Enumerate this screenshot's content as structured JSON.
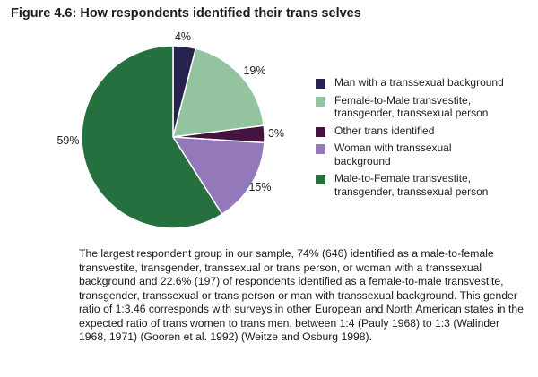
{
  "figure": {
    "title": "Figure 4.6: How respondents identified their trans selves"
  },
  "chart_data": {
    "type": "pie",
    "start_angle_deg": 0,
    "direction": "clockwise",
    "slices": [
      {
        "label": "Man with a transsexual background",
        "value": 4,
        "display": "4%",
        "color": "#27224f"
      },
      {
        "label": "Female-to-Male transvestite,\ntransgender, transsexual person",
        "value": 19,
        "display": "19%",
        "color": "#93c49f"
      },
      {
        "label": "Other trans identified",
        "value": 3,
        "display": "3%",
        "color": "#45133f"
      },
      {
        "label": "Woman with transsexual\nbackground",
        "value": 15,
        "display": "15%",
        "color": "#9479ba"
      },
      {
        "label": "Male-to-Female transvestite,\ntransgender, transsexual person",
        "value": 59,
        "display": "59%",
        "color": "#26703f"
      }
    ]
  },
  "caption": "The largest respondent group in our sample, 74% (646) identified as a male-to-female transvestite, transgender, transsexual or trans person, or woman with a transsexual background and 22.6% (197) of respondents identified as a female-to-male transvestite, transgender, transsexual or trans person or man with transsexual background. This gender ratio of 1:3.46 corresponds with surveys in other European and North American states in the expected ratio of trans women to trans men, between 1:4 (Pauly 1968) to 1:3 (Walinder 1968, 1971) (Gooren et al. 1992) (Weitze and Osburg 1998)."
}
